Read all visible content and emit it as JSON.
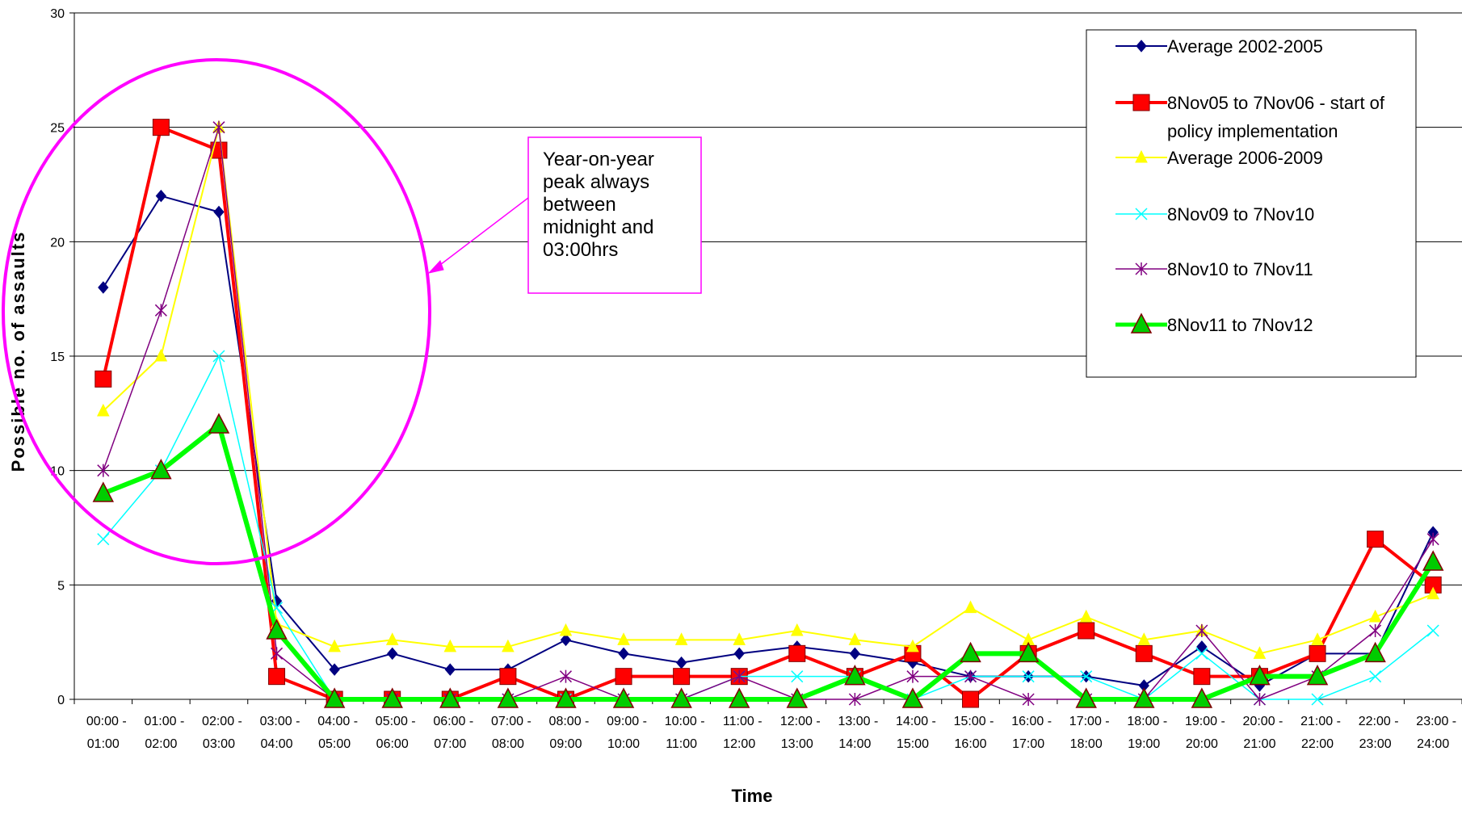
{
  "chart_data": {
    "type": "line",
    "title": "",
    "xlabel": "Time",
    "ylabel": "Possible no. of assaults",
    "ylim": [
      0,
      30
    ],
    "yticks": [
      0,
      5,
      10,
      15,
      20,
      25,
      30
    ],
    "grid": true,
    "legend_position": "top-right",
    "categories": [
      [
        "00:00 -",
        "01:00"
      ],
      [
        "01:00 -",
        "02:00"
      ],
      [
        "02:00 -",
        "03:00"
      ],
      [
        "03:00 -",
        "04:00"
      ],
      [
        "04:00 -",
        "05:00"
      ],
      [
        "05:00 -",
        "06:00"
      ],
      [
        "06:00 -",
        "07:00"
      ],
      [
        "07:00 -",
        "08:00"
      ],
      [
        "08:00 -",
        "09:00"
      ],
      [
        "09:00 -",
        "10:00"
      ],
      [
        "10:00 -",
        "11:00"
      ],
      [
        "11:00 -",
        "12:00"
      ],
      [
        "12:00 -",
        "13:00"
      ],
      [
        "13:00 -",
        "14:00"
      ],
      [
        "14:00 -",
        "15:00"
      ],
      [
        "15:00 -",
        "16:00"
      ],
      [
        "16:00 -",
        "17:00"
      ],
      [
        "17:00 -",
        "18:00"
      ],
      [
        "18:00 -",
        "19:00"
      ],
      [
        "19:00 -",
        "20:00"
      ],
      [
        "20:00 -",
        "21:00"
      ],
      [
        "21:00 -",
        "22:00"
      ],
      [
        "22:00 -",
        "23:00"
      ],
      [
        "23:00 -",
        "24:00"
      ]
    ],
    "series": [
      {
        "name": "Average 2002-2005",
        "legend_lines": [
          "Average 2002-2005"
        ],
        "color": "#000080",
        "marker": "diamond",
        "line_width": 2,
        "values": [
          18,
          22,
          21.3,
          4.3,
          1.3,
          2,
          1.3,
          1.3,
          2.6,
          2,
          1.6,
          2,
          2.3,
          2,
          1.6,
          1,
          1,
          1,
          0.6,
          2.3,
          0.6,
          2,
          2,
          7.3
        ]
      },
      {
        "name": "8Nov05 to 7Nov06 - start of policy implementation",
        "legend_lines": [
          "8Nov05 to 7Nov06 - start of",
          "policy implementation"
        ],
        "color": "#ff0000",
        "marker": "square",
        "line_width": 4,
        "values": [
          14,
          25,
          24,
          1,
          0,
          0,
          0,
          1,
          0,
          1,
          1,
          1,
          2,
          1,
          2,
          0,
          2,
          3,
          2,
          1,
          1,
          2,
          7,
          5
        ]
      },
      {
        "name": "Average 2006-2009",
        "legend_lines": [
          "Average 2006-2009"
        ],
        "color": "#ffff00",
        "marker": "triangle",
        "line_width": 2,
        "values": [
          12.6,
          15,
          25,
          3.3,
          2.3,
          2.6,
          2.3,
          2.3,
          3,
          2.6,
          2.6,
          2.6,
          3,
          2.6,
          2.3,
          4,
          2.6,
          3.6,
          2.6,
          3,
          2,
          2.6,
          3.6,
          4.6
        ]
      },
      {
        "name": "8Nov09 to 7Nov10",
        "legend_lines": [
          "8Nov09 to 7Nov10"
        ],
        "color": "#00ffff",
        "marker": "x",
        "line_width": 1.5,
        "values": [
          7,
          10,
          15,
          4,
          0,
          0,
          0,
          0,
          0,
          0,
          0,
          1,
          1,
          1,
          0,
          1,
          1,
          1,
          0,
          2,
          0,
          0,
          1,
          3
        ]
      },
      {
        "name": "8Nov10 to 7Nov11",
        "legend_lines": [
          "8Nov10 to 7Nov11"
        ],
        "color": "#800080",
        "marker": "star",
        "line_width": 1.5,
        "values": [
          10,
          17,
          25,
          2,
          0,
          0,
          0,
          0,
          1,
          0,
          0,
          1,
          0,
          0,
          1,
          1,
          0,
          0,
          0,
          3,
          0,
          1,
          3,
          7
        ]
      },
      {
        "name": "8Nov11 to 7Nov12",
        "legend_lines": [
          "8Nov11 to 7Nov12"
        ],
        "color": "#00ff00",
        "marker_fill": "#00cc00",
        "marker_edge": "#800000",
        "marker": "triangle",
        "line_width": 6,
        "values": [
          9,
          10,
          12,
          3,
          0,
          0,
          0,
          0,
          0,
          0,
          0,
          0,
          0,
          1,
          0,
          2,
          2,
          0,
          0,
          0,
          1,
          1,
          2,
          6
        ]
      }
    ],
    "annotation": {
      "lines": [
        "Year-on-year",
        "peak always",
        "between",
        "midnight and",
        "03:00hrs"
      ],
      "color": "#ff00ff"
    }
  }
}
